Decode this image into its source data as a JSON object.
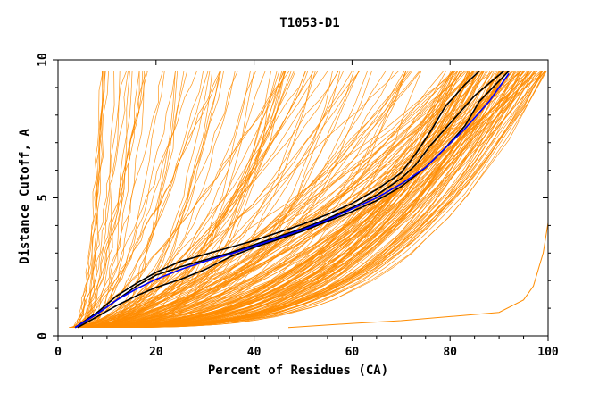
{
  "chart_data": {
    "type": "line",
    "title": "T1053-D1",
    "xlabel": "Percent of Residues (CA)",
    "ylabel": "Distance Cutoff, A",
    "xlim": [
      0,
      100
    ],
    "ylim": [
      0,
      10
    ],
    "x_ticks": [
      "0",
      "20",
      "40",
      "60",
      "80",
      "100"
    ],
    "y_ticks": [
      "0",
      "5",
      "10"
    ],
    "colors": {
      "orange": "#ff8c00",
      "black": "#000000",
      "blue": "#0000ff",
      "axis": "#000000",
      "background": "#ffffff"
    },
    "series": [
      {
        "name": "highlight-1",
        "color": "#000000",
        "x": [
          3.5,
          8,
          12,
          16,
          20,
          25,
          30,
          35,
          40,
          45,
          50,
          55,
          60,
          65,
          70,
          73,
          76,
          80,
          85,
          91
        ],
        "y": [
          0.3,
          0.8,
          1.3,
          1.8,
          2.2,
          2.5,
          2.75,
          3.0,
          3.3,
          3.6,
          3.9,
          4.25,
          4.65,
          5.1,
          5.7,
          6.2,
          6.9,
          7.7,
          8.7,
          9.6
        ]
      },
      {
        "name": "highlight-2",
        "color": "#000000",
        "x": [
          3.5,
          8,
          12,
          16,
          20,
          25,
          30,
          35,
          40,
          45,
          50,
          55,
          60,
          65,
          70,
          73,
          76,
          79,
          83,
          86
        ],
        "y": [
          0.3,
          0.85,
          1.45,
          1.9,
          2.3,
          2.7,
          2.95,
          3.2,
          3.45,
          3.75,
          4.05,
          4.4,
          4.8,
          5.3,
          5.9,
          6.6,
          7.4,
          8.3,
          9.1,
          9.6
        ]
      },
      {
        "name": "highlight-3",
        "color": "#000000",
        "x": [
          4,
          8,
          12,
          16,
          20,
          25,
          30,
          35,
          40,
          45,
          50,
          55,
          60,
          65,
          70,
          75,
          79,
          83,
          86,
          92
        ],
        "y": [
          0.3,
          0.7,
          1.1,
          1.45,
          1.75,
          2.05,
          2.4,
          2.85,
          3.2,
          3.5,
          3.8,
          4.15,
          4.5,
          4.9,
          5.4,
          6.1,
          6.8,
          7.6,
          8.5,
          9.6
        ]
      },
      {
        "name": "highlight-blue",
        "color": "#0000ff",
        "x": [
          3.5,
          8,
          12,
          16,
          20,
          25,
          30,
          35,
          40,
          45,
          50,
          55,
          60,
          65,
          70,
          75,
          79,
          83,
          88,
          92
        ],
        "y": [
          0.3,
          0.8,
          1.3,
          1.7,
          2.05,
          2.4,
          2.7,
          2.95,
          3.25,
          3.55,
          3.85,
          4.2,
          4.6,
          5.0,
          5.5,
          6.1,
          6.8,
          7.5,
          8.5,
          9.5
        ]
      },
      {
        "name": "outlier-bottom",
        "color": "#ff8c00",
        "x": [
          47,
          60,
          70,
          80,
          90,
          95,
          97,
          99,
          100
        ],
        "y": [
          0.3,
          0.45,
          0.55,
          0.7,
          0.85,
          1.3,
          1.8,
          3.0,
          4.1
        ]
      },
      {
        "name": "outlier-edge",
        "color": "#ff8c00",
        "x": [
          100,
          100,
          100
        ],
        "y": [
          4.1,
          7.0,
          9.6
        ]
      }
    ],
    "orange_bundle": {
      "count": 220,
      "x_start": [
        2.5,
        5
      ],
      "y_start": 0.3,
      "y_end": 9.6,
      "x_end_range": [
        8,
        100
      ],
      "color": "#ff8c00"
    }
  }
}
